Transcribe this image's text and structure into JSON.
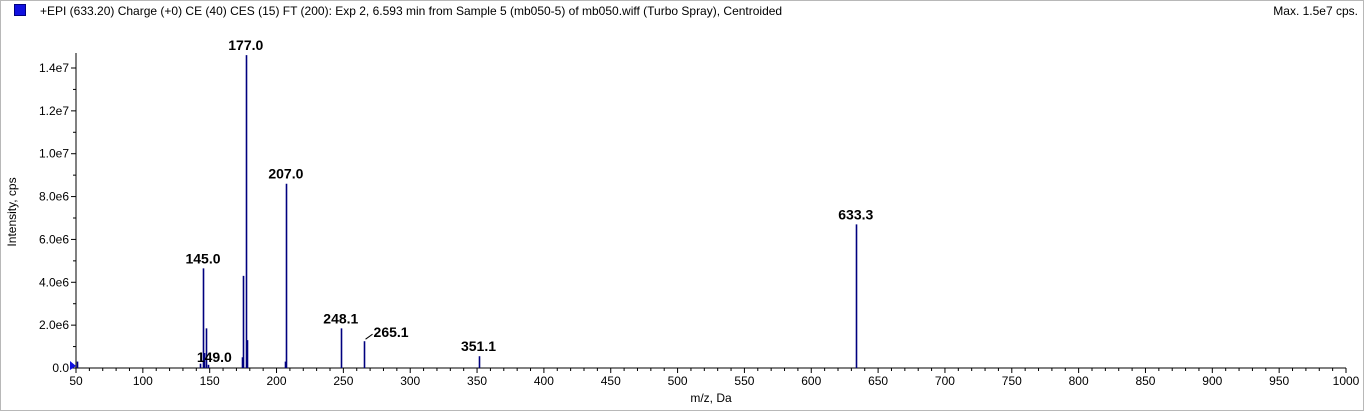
{
  "header": {
    "title": "+EPI (633.20) Charge (+0) CE (40) CES (15) FT (200): Exp 2, 6.593 min from Sample 5 (mb050-5) of mb050.wiff (Turbo Spray), Centroided",
    "max_label": "Max. 1.5e7 cps."
  },
  "colors": {
    "peak": "#00007f",
    "axis": "#000000",
    "marker": "#1010e0"
  },
  "chart_data": {
    "type": "bar",
    "xlabel": "m/z, Da",
    "ylabel": "Intensity, cps",
    "xlim": [
      50,
      1000
    ],
    "ylim": [
      0,
      14700000
    ],
    "x_ticks": [
      50,
      100,
      150,
      200,
      250,
      300,
      350,
      400,
      450,
      500,
      550,
      600,
      650,
      700,
      750,
      800,
      850,
      900,
      950,
      1000
    ],
    "y_ticks": [
      {
        "value": 0,
        "label": "0.0"
      },
      {
        "value": 2000000,
        "label": "2.0e6"
      },
      {
        "value": 4000000,
        "label": "4.0e6"
      },
      {
        "value": 6000000,
        "label": "6.0e6"
      },
      {
        "value": 8000000,
        "label": "8.0e6"
      },
      {
        "value": 10000000,
        "label": "1.0e7"
      },
      {
        "value": 12000000,
        "label": "1.2e7"
      },
      {
        "value": 14000000,
        "label": "1.4e7"
      }
    ],
    "peaks": [
      {
        "mz": 51.0,
        "intensity": 300000
      },
      {
        "mz": 143.0,
        "intensity": 200000
      },
      {
        "mz": 145.0,
        "intensity": 4650000
      },
      {
        "mz": 146.0,
        "intensity": 700000
      },
      {
        "mz": 147.0,
        "intensity": 1850000
      },
      {
        "mz": 149.0,
        "intensity": 150000
      },
      {
        "mz": 174.0,
        "intensity": 500000
      },
      {
        "mz": 175.0,
        "intensity": 4300000
      },
      {
        "mz": 177.0,
        "intensity": 14600000
      },
      {
        "mz": 178.0,
        "intensity": 1300000
      },
      {
        "mz": 206.0,
        "intensity": 300000
      },
      {
        "mz": 207.0,
        "intensity": 8600000
      },
      {
        "mz": 248.1,
        "intensity": 1850000
      },
      {
        "mz": 265.1,
        "intensity": 1250000
      },
      {
        "mz": 351.1,
        "intensity": 550000
      },
      {
        "mz": 633.3,
        "intensity": 6700000
      }
    ],
    "annotations": [
      {
        "text": "145.0",
        "mz": 145.0,
        "intensity": 4650000
      },
      {
        "text": "149.0",
        "mz": 149.0,
        "intensity": 150000
      },
      {
        "text": "177.0",
        "mz": 177.0,
        "intensity": 14600000
      },
      {
        "text": "207.0",
        "mz": 207.0,
        "intensity": 8600000
      },
      {
        "text": "248.1",
        "mz": 248.1,
        "intensity": 1850000
      },
      {
        "text": "265.1",
        "mz": 265.1,
        "intensity": 1250000
      },
      {
        "text": "351.1",
        "mz": 351.1,
        "intensity": 550000
      },
      {
        "text": "633.3",
        "mz": 633.3,
        "intensity": 6700000
      }
    ]
  }
}
